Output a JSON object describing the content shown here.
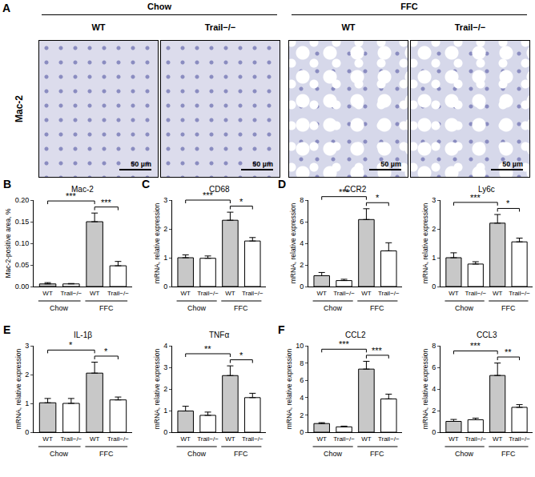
{
  "chart_data": [
    {
      "type": "bar",
      "panel": "B",
      "title": "Mac-2",
      "y_label": "Mac-2-positive area, %",
      "categories": [
        "WT",
        "Trail−/−",
        "WT",
        "Trail−/−"
      ],
      "values": [
        0.006,
        0.006,
        0.15,
        0.048
      ],
      "errors": [
        0.003,
        0.001,
        0.02,
        0.01
      ],
      "colors": [
        "#c8c8c8",
        "#ffffff",
        "#c8c8c8",
        "#ffffff"
      ],
      "ylim": [
        0,
        0.2
      ],
      "yticks": [
        {
          "value": 0,
          "label": "0.00"
        },
        {
          "value": 0.05,
          "label": "0.05"
        },
        {
          "value": 0.1,
          "label": "0.10"
        },
        {
          "value": 0.15,
          "label": "0.15"
        },
        {
          "value": 0.2,
          "label": "0.20"
        }
      ],
      "grid": false,
      "groups": [
        {
          "label": "Chow",
          "from": 0,
          "to": 1
        },
        {
          "label": "FFC",
          "from": 2,
          "to": 3
        }
      ],
      "comparisons": [
        {
          "from": 0,
          "to": 2,
          "label": "***"
        },
        {
          "from": 2,
          "to": 3,
          "label": "***"
        }
      ]
    },
    {
      "type": "bar",
      "panel": "C",
      "title": "CD68",
      "y_label": "mRNA, relative expression",
      "categories": [
        "WT",
        "Trail−/−",
        "WT",
        "Trail−/−"
      ],
      "values": [
        1.0,
        0.98,
        2.3,
        1.58
      ],
      "errors": [
        0.1,
        0.08,
        0.28,
        0.12
      ],
      "colors": [
        "#c8c8c8",
        "#ffffff",
        "#c8c8c8",
        "#ffffff"
      ],
      "ylim": [
        0,
        3
      ],
      "yticks": [
        0,
        1,
        2,
        3
      ],
      "grid": false,
      "groups": [
        {
          "label": "Chow",
          "from": 0,
          "to": 1
        },
        {
          "label": "FFC",
          "from": 2,
          "to": 3
        }
      ],
      "comparisons": [
        {
          "from": 0,
          "to": 2,
          "label": "***"
        },
        {
          "from": 2,
          "to": 3,
          "label": "*"
        }
      ]
    },
    {
      "type": "bar",
      "panel": "D",
      "title": "CCR2",
      "y_label": "mRNA, relative expression",
      "categories": [
        "WT",
        "Trail−/−",
        "WT",
        "Trail−/−"
      ],
      "values": [
        1.0,
        0.55,
        6.2,
        3.3
      ],
      "errors": [
        0.3,
        0.12,
        1.0,
        0.75
      ],
      "colors": [
        "#c8c8c8",
        "#ffffff",
        "#c8c8c8",
        "#ffffff"
      ],
      "ylim": [
        0,
        8
      ],
      "yticks": [
        0,
        2,
        4,
        6,
        8
      ],
      "grid": false,
      "groups": [
        {
          "label": "Chow",
          "from": 0,
          "to": 1
        },
        {
          "label": "FFC",
          "from": 2,
          "to": 3
        }
      ],
      "comparisons": [
        {
          "from": 0,
          "to": 2,
          "label": "***"
        },
        {
          "from": 2,
          "to": 3,
          "label": "*"
        }
      ]
    },
    {
      "type": "bar",
      "title": "Ly6c",
      "y_label": "mRNA, relative expression",
      "categories": [
        "WT",
        "Trail−/−",
        "WT",
        "Trail−/−"
      ],
      "values": [
        1.0,
        0.78,
        2.2,
        1.55
      ],
      "errors": [
        0.17,
        0.08,
        0.3,
        0.13
      ],
      "colors": [
        "#c8c8c8",
        "#ffffff",
        "#c8c8c8",
        "#ffffff"
      ],
      "ylim": [
        0,
        3
      ],
      "yticks": [
        0,
        1,
        2,
        3
      ],
      "grid": false,
      "groups": [
        {
          "label": "Chow",
          "from": 0,
          "to": 1
        },
        {
          "label": "FFC",
          "from": 2,
          "to": 3
        }
      ],
      "comparisons": [
        {
          "from": 0,
          "to": 2,
          "label": "***"
        },
        {
          "from": 2,
          "to": 3,
          "label": "*"
        }
      ]
    },
    {
      "type": "bar",
      "panel": "E",
      "title": "IL-1β",
      "y_label": "mRNA, relative expression",
      "categories": [
        "WT",
        "Trail−/−",
        "WT",
        "Trail−/−"
      ],
      "values": [
        1.02,
        1.0,
        2.05,
        1.12
      ],
      "errors": [
        0.15,
        0.17,
        0.38,
        0.1
      ],
      "colors": [
        "#c8c8c8",
        "#ffffff",
        "#c8c8c8",
        "#ffffff"
      ],
      "ylim": [
        0,
        3
      ],
      "yticks": [
        0,
        1,
        2,
        3
      ],
      "grid": false,
      "groups": [
        {
          "label": "Chow",
          "from": 0,
          "to": 1
        },
        {
          "label": "FFC",
          "from": 2,
          "to": 3
        }
      ],
      "comparisons": [
        {
          "from": 0,
          "to": 2,
          "label": "*"
        },
        {
          "from": 2,
          "to": 3,
          "label": "*"
        }
      ]
    },
    {
      "type": "bar",
      "title": "TNFα",
      "y_label": "mRNA, relative expression",
      "categories": [
        "WT",
        "Trail−/−",
        "WT",
        "Trail−/−"
      ],
      "values": [
        0.98,
        0.78,
        2.62,
        1.6
      ],
      "errors": [
        0.22,
        0.15,
        0.45,
        0.2
      ],
      "colors": [
        "#c8c8c8",
        "#ffffff",
        "#c8c8c8",
        "#ffffff"
      ],
      "ylim": [
        0,
        4
      ],
      "yticks": [
        0,
        1,
        2,
        3,
        4
      ],
      "grid": false,
      "groups": [
        {
          "label": "Chow",
          "from": 0,
          "to": 1
        },
        {
          "label": "FFC",
          "from": 2,
          "to": 3
        }
      ],
      "comparisons": [
        {
          "from": 0,
          "to": 2,
          "label": "**"
        },
        {
          "from": 2,
          "to": 3,
          "label": "*"
        }
      ]
    },
    {
      "type": "bar",
      "panel": "F",
      "title": "CCL2",
      "y_label": "mRNA, relative expression",
      "categories": [
        "WT",
        "Trail−/−",
        "WT",
        "Trail−/−"
      ],
      "values": [
        1.0,
        0.62,
        7.3,
        3.85
      ],
      "errors": [
        0.1,
        0.08,
        0.9,
        0.55
      ],
      "colors": [
        "#c8c8c8",
        "#ffffff",
        "#c8c8c8",
        "#ffffff"
      ],
      "ylim": [
        0,
        10
      ],
      "yticks": [
        0,
        2,
        4,
        6,
        8,
        10
      ],
      "grid": false,
      "groups": [
        {
          "label": "Chow",
          "from": 0,
          "to": 1
        },
        {
          "label": "FFC",
          "from": 2,
          "to": 3
        }
      ],
      "comparisons": [
        {
          "from": 0,
          "to": 2,
          "label": "***"
        },
        {
          "from": 2,
          "to": 3,
          "label": "***"
        }
      ]
    },
    {
      "type": "bar",
      "title": "CCL3",
      "y_label": "mRNA, relative expression",
      "categories": [
        "WT",
        "Trail−/−",
        "WT",
        "Trail−/−"
      ],
      "values": [
        1.0,
        1.15,
        5.25,
        2.3
      ],
      "errors": [
        0.18,
        0.15,
        1.15,
        0.25
      ],
      "colors": [
        "#c8c8c8",
        "#ffffff",
        "#c8c8c8",
        "#ffffff"
      ],
      "ylim": [
        0,
        8
      ],
      "yticks": [
        0,
        2,
        4,
        6,
        8
      ],
      "grid": false,
      "groups": [
        {
          "label": "Chow",
          "from": 0,
          "to": 1
        },
        {
          "label": "FFC",
          "from": 2,
          "to": 3
        }
      ],
      "comparisons": [
        {
          "from": 0,
          "to": 2,
          "label": "***"
        },
        {
          "from": 2,
          "to": 3,
          "label": "**"
        }
      ]
    }
  ],
  "image_panel": {
    "panel": "A",
    "row_label": "Mac-2",
    "scale_bar": "50 µm",
    "groups": [
      {
        "label": "Chow",
        "columns": [
          "WT",
          "Trail−/−"
        ]
      },
      {
        "label": "FFC",
        "columns": [
          "WT",
          "Trail−/−"
        ]
      }
    ]
  }
}
